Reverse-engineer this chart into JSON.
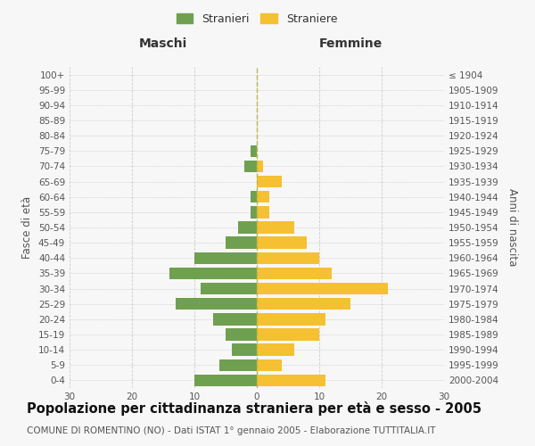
{
  "age_groups": [
    "0-4",
    "5-9",
    "10-14",
    "15-19",
    "20-24",
    "25-29",
    "30-34",
    "35-39",
    "40-44",
    "45-49",
    "50-54",
    "55-59",
    "60-64",
    "65-69",
    "70-74",
    "75-79",
    "80-84",
    "85-89",
    "90-94",
    "95-99",
    "100+"
  ],
  "birth_years": [
    "2000-2004",
    "1995-1999",
    "1990-1994",
    "1985-1989",
    "1980-1984",
    "1975-1979",
    "1970-1974",
    "1965-1969",
    "1960-1964",
    "1955-1959",
    "1950-1954",
    "1945-1949",
    "1940-1944",
    "1935-1939",
    "1930-1934",
    "1925-1929",
    "1920-1924",
    "1915-1919",
    "1910-1914",
    "1905-1909",
    "≤ 1904"
  ],
  "maschi": [
    10,
    6,
    4,
    5,
    7,
    13,
    9,
    14,
    10,
    5,
    3,
    1,
    1,
    0,
    2,
    1,
    0,
    0,
    0,
    0,
    0
  ],
  "femmine": [
    11,
    4,
    6,
    10,
    11,
    15,
    21,
    12,
    10,
    8,
    6,
    2,
    2,
    4,
    1,
    0,
    0,
    0,
    0,
    0,
    0
  ],
  "maschi_color": "#6fa050",
  "femmine_color": "#f5c031",
  "bar_height": 0.78,
  "xlim": 30,
  "title": "Popolazione per cittadinanza straniera per età e sesso - 2005",
  "subtitle": "COMUNE DI ROMENTINO (NO) - Dati ISTAT 1° gennaio 2005 - Elaborazione TUTTITALIA.IT",
  "ylabel_left": "Fasce di età",
  "ylabel_right": "Anni di nascita",
  "header_left": "Maschi",
  "header_right": "Femmine",
  "legend_maschi": "Stranieri",
  "legend_femmine": "Straniere",
  "background_color": "#f7f7f7",
  "grid_color": "#cccccc",
  "title_fontsize": 10.5,
  "subtitle_fontsize": 7.5,
  "tick_fontsize": 7.5,
  "label_fontsize": 8.5,
  "header_fontsize": 10
}
